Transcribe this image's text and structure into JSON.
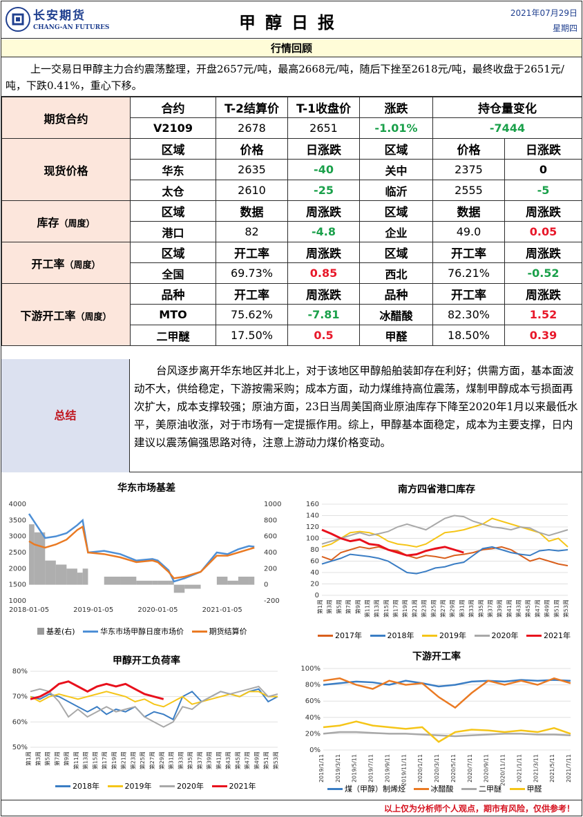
{
  "header": {
    "logo_cn": "长安期货",
    "logo_en": "CHANG-AN FUTURES",
    "title": "甲醇日报",
    "date": "2021年07月29日",
    "weekday": "星期四"
  },
  "review": {
    "heading": "行情回顾",
    "text": "上一交易日甲醇主力合约震荡整理，开盘2657元/吨，最高2668元/吨，随后下挫至2618元/吨，最终收盘于2651元/吨，下跌0.41%，重心下移。"
  },
  "futures": {
    "label": "期货合约",
    "headers": [
      "合约",
      "T-2结算价",
      "T-1收盘价",
      "涨跌",
      "持仓量变化"
    ],
    "row": [
      "V2109",
      "2678",
      "2651",
      "-1.01%",
      "-7444"
    ]
  },
  "spot": {
    "label": "现货价格",
    "headers": [
      "区域",
      "价格",
      "日涨跌",
      "区域",
      "价格",
      "日涨跌"
    ],
    "rows": [
      [
        "华东",
        "2635",
        "-40",
        "关中",
        "2375",
        "0"
      ],
      [
        "太仓",
        "2610",
        "-25",
        "临沂",
        "2555",
        "-5"
      ]
    ]
  },
  "inventory": {
    "label": "库存",
    "sub": "（周度）",
    "headers": [
      "区域",
      "数据",
      "周涨跌",
      "区域",
      "数据",
      "周涨跌"
    ],
    "row": [
      "港口",
      "82",
      "-4.8",
      "企业",
      "49.0",
      "0.05"
    ]
  },
  "operating": {
    "label": "开工率",
    "sub": "（周度）",
    "headers": [
      "区域",
      "开工率",
      "周涨跌",
      "区域",
      "开工率",
      "周涨跌"
    ],
    "row": [
      "全国",
      "69.73%",
      "0.85",
      "西北",
      "76.21%",
      "-0.52"
    ]
  },
  "downstream": {
    "label": "下游开工率",
    "sub": "（周度）",
    "headers": [
      "品种",
      "开工率",
      "周涨跌",
      "品种",
      "开工率",
      "周涨跌"
    ],
    "rows": [
      [
        "MTO",
        "75.62%",
        "-7.81",
        "冰醋酸",
        "82.30%",
        "1.52"
      ],
      [
        "二甲醚",
        "17.50%",
        "0.5",
        "甲醛",
        "18.50%",
        "0.39"
      ]
    ]
  },
  "summary": {
    "label": "总结",
    "text": "台风逐步离开华东地区并北上，对于该地区甲醇船舶装卸存在利好；供需方面，基本面波动不大，供给稳定，下游按需采购；成本方面，动力煤维持高位震荡，煤制甲醇成本亏损面再次扩大，成本支撑较强；原油方面，23日当周美国商业原油库存下降至2020年1月以来最低水平，美原油收涨，对于市场有一定提振作用。综上，甲醇基本面稳定，成本为主要支撑，日内建议以震荡偏强思路对待，注意上游动力煤价格变动。"
  },
  "colors": {
    "s2017": "#d95f1c",
    "s2018": "#3a7dc4",
    "s2019": "#f5c518",
    "s2020": "#a8a8a8",
    "s2021": "#e8101c",
    "basis": "#9a9a9a",
    "spot": "#4d8fd6",
    "settle": "#ea7a23"
  },
  "chart_data": [
    {
      "type": "line",
      "title": "华东市场基差",
      "x_ticks": [
        "2018-01-05",
        "2019-01-05",
        "2020-01-05",
        "2021-01-05"
      ],
      "y_left_ticks": [
        "4000",
        "3500",
        "3000",
        "2500",
        "2000",
        "1500",
        "1000"
      ],
      "y_right_ticks": [
        "1000",
        "800",
        "600",
        "400",
        "200",
        "0",
        "-200"
      ],
      "ylim_left": [
        1000,
        4000
      ],
      "ylim_right": [
        -200,
        1000
      ],
      "legend": [
        "基差(右)",
        "华东市场甲醇日度市场价",
        "期货结算价"
      ],
      "series": [
        {
          "name": "华东市场甲醇日度市场价",
          "x": [
            "2018-01",
            "2018-02",
            "2018-04",
            "2018-06",
            "2018-08",
            "2018-10",
            "2018-11",
            "2018-12",
            "2019-03",
            "2019-06",
            "2019-09",
            "2019-12",
            "2020-01",
            "2020-03",
            "2020-04",
            "2020-06",
            "2020-09",
            "2020-12",
            "2021-02",
            "2021-04",
            "2021-06",
            "2021-07"
          ],
          "values": [
            3700,
            3450,
            2950,
            3000,
            3100,
            3350,
            3500,
            2500,
            2550,
            2450,
            2250,
            2300,
            2250,
            1950,
            1600,
            1700,
            1900,
            2500,
            2450,
            2600,
            2700,
            2680
          ]
        },
        {
          "name": "期货结算价",
          "x": [
            "2018-01",
            "2018-02",
            "2018-04",
            "2018-06",
            "2018-08",
            "2018-10",
            "2018-11",
            "2018-12",
            "2019-03",
            "2019-06",
            "2019-09",
            "2019-12",
            "2020-01",
            "2020-03",
            "2020-04",
            "2020-06",
            "2020-09",
            "2020-12",
            "2021-02",
            "2021-04",
            "2021-06",
            "2021-07"
          ],
          "values": [
            2850,
            2750,
            2650,
            2750,
            2900,
            3200,
            3300,
            2500,
            2450,
            2350,
            2200,
            2250,
            2200,
            1900,
            1700,
            1750,
            1900,
            2400,
            2400,
            2500,
            2600,
            2650
          ]
        },
        {
          "name": "基差(右)",
          "x": [
            "2018-01",
            "2018-02",
            "2018-04",
            "2018-06",
            "2018-08",
            "2018-10",
            "2018-11",
            "2018-12",
            "2019-03",
            "2019-06",
            "2019-09",
            "2019-12",
            "2020-01",
            "2020-03",
            "2020-04",
            "2020-06",
            "2020-09",
            "2020-12",
            "2021-02",
            "2021-04",
            "2021-06",
            "2021-07"
          ],
          "values": [
            750,
            650,
            300,
            250,
            200,
            150,
            200,
            0,
            100,
            100,
            50,
            50,
            50,
            50,
            -100,
            -50,
            0,
            100,
            50,
            100,
            100,
            30
          ]
        }
      ]
    },
    {
      "type": "line",
      "title": "南方四省港口库存",
      "x_ticks": [
        "第1周",
        "第3周",
        "第5周",
        "第7周",
        "第9周",
        "第11周",
        "第13周",
        "第15周",
        "第17周",
        "第19周",
        "第21周",
        "第23周",
        "第25周",
        "第27周",
        "第29周",
        "第31周",
        "第33周",
        "第35周",
        "第37周",
        "第39周",
        "第41周",
        "第43周",
        "第45周",
        "第47周",
        "第49周",
        "第51周",
        "第53周"
      ],
      "y_ticks": [
        "160",
        "140",
        "120",
        "100",
        "80",
        "60",
        "40",
        "20",
        "0"
      ],
      "ylim": [
        0,
        160
      ],
      "legend": [
        "2017年",
        "2018年",
        "2019年",
        "2020年",
        "2021年"
      ],
      "series": [
        {
          "name": "2017年",
          "values": [
            68,
            62,
            75,
            80,
            85,
            82,
            85,
            80,
            78,
            70,
            65,
            70,
            68,
            65,
            70,
            72,
            75,
            80,
            82,
            85,
            80,
            70,
            60,
            65,
            60,
            55,
            52
          ]
        },
        {
          "name": "2018年",
          "values": [
            55,
            60,
            65,
            72,
            70,
            68,
            65,
            60,
            50,
            40,
            38,
            42,
            48,
            50,
            55,
            58,
            70,
            82,
            85,
            80,
            75,
            72,
            70,
            78,
            80,
            78,
            80
          ]
        },
        {
          "name": "2019年",
          "values": [
            85,
            90,
            100,
            110,
            112,
            110,
            105,
            95,
            90,
            88,
            85,
            90,
            100,
            110,
            112,
            115,
            120,
            125,
            135,
            130,
            125,
            120,
            115,
            110,
            95,
            100,
            85
          ]
        },
        {
          "name": "2020年",
          "values": [
            90,
            95,
            100,
            105,
            110,
            105,
            108,
            112,
            120,
            125,
            120,
            115,
            125,
            135,
            140,
            138,
            130,
            125,
            120,
            118,
            115,
            120,
            118,
            110,
            105,
            110,
            115
          ]
        },
        {
          "name": "2021年",
          "values": [
            115,
            108,
            100,
            95,
            98,
            90,
            88,
            80,
            75,
            70,
            72,
            78,
            82,
            85,
            80,
            75
          ]
        }
      ]
    },
    {
      "type": "line",
      "title": "甲醇开工负荷率",
      "x_ticks": [
        "第1周",
        "第3周",
        "第5周",
        "第7周",
        "第9周",
        "第11周",
        "第13周",
        "第15周",
        "第17周",
        "第19周",
        "第21周",
        "第23周",
        "第25周",
        "第27周",
        "第29周",
        "第31周",
        "第33周",
        "第35周",
        "第37周",
        "第39周",
        "第41周",
        "第43周",
        "第45周",
        "第47周",
        "第49周",
        "第51周",
        "第53周"
      ],
      "y_ticks": [
        "80%",
        "70%",
        "60%",
        "50%"
      ],
      "ylim": [
        50,
        80
      ],
      "legend": [
        "2018年",
        "2019年",
        "2020年",
        "2021年"
      ],
      "series": [
        {
          "name": "2018年",
          "values": [
            70,
            69,
            71,
            70,
            68,
            66,
            64,
            66,
            63,
            65,
            64,
            66,
            62,
            64,
            63,
            61,
            70,
            72,
            68,
            70,
            72,
            71,
            70,
            72,
            73,
            68,
            70
          ]
        },
        {
          "name": "2019年",
          "values": [
            70,
            68,
            70,
            71,
            70,
            69,
            70,
            71,
            72,
            71,
            70,
            68,
            69,
            67,
            66,
            68,
            70,
            67,
            68,
            69,
            70,
            71,
            70,
            72,
            72,
            70,
            70
          ]
        },
        {
          "name": "2020年",
          "values": [
            72,
            73,
            72,
            68,
            62,
            65,
            62,
            64,
            66,
            64,
            65,
            66,
            62,
            60,
            58,
            60,
            66,
            65,
            68,
            70,
            72,
            71,
            72,
            73,
            74,
            70,
            71
          ]
        },
        {
          "name": "2021年",
          "values": [
            69,
            70,
            72,
            75,
            76,
            74,
            72,
            74,
            75,
            74,
            75,
            73,
            71,
            70,
            69
          ]
        }
      ]
    },
    {
      "type": "line",
      "title": "下游开工率",
      "x_ticks": [
        "2019/1/11",
        "2019/3/11",
        "2019/5/11",
        "2019/7/11",
        "2019/9/11",
        "2019/11/11",
        "2020/1/11",
        "2020/3/11",
        "2020/5/11",
        "2020/7/11",
        "2020/9/11",
        "2020/11/11",
        "2021/1/11",
        "2021/3/11",
        "2021/5/11",
        "2021/7/11"
      ],
      "y_ticks": [
        "100%",
        "80%",
        "60%",
        "40%",
        "20%",
        "0%"
      ],
      "ylim": [
        0,
        100
      ],
      "legend": [
        "煤（甲醇）制烯烃",
        "冰醋酸",
        "二甲醚",
        "甲醛"
      ],
      "series": [
        {
          "name": "煤（甲醇）制烯烃",
          "values": [
            80,
            82,
            84,
            83,
            80,
            85,
            82,
            78,
            80,
            84,
            85,
            84,
            86,
            85,
            86,
            85
          ]
        },
        {
          "name": "冰醋酸",
          "values": [
            85,
            88,
            80,
            75,
            85,
            80,
            82,
            65,
            52,
            70,
            85,
            80,
            85,
            80,
            88,
            82
          ]
        },
        {
          "name": "二甲醚",
          "values": [
            20,
            22,
            22,
            21,
            20,
            20,
            19,
            18,
            17,
            18,
            19,
            20,
            20,
            19,
            19,
            18
          ]
        },
        {
          "name": "甲醛",
          "values": [
            28,
            30,
            35,
            30,
            28,
            26,
            28,
            10,
            22,
            25,
            24,
            22,
            24,
            22,
            27,
            20
          ]
        }
      ]
    }
  ],
  "footer": "以上仅为分析师个人观点，期市有风险，仅供参考！"
}
